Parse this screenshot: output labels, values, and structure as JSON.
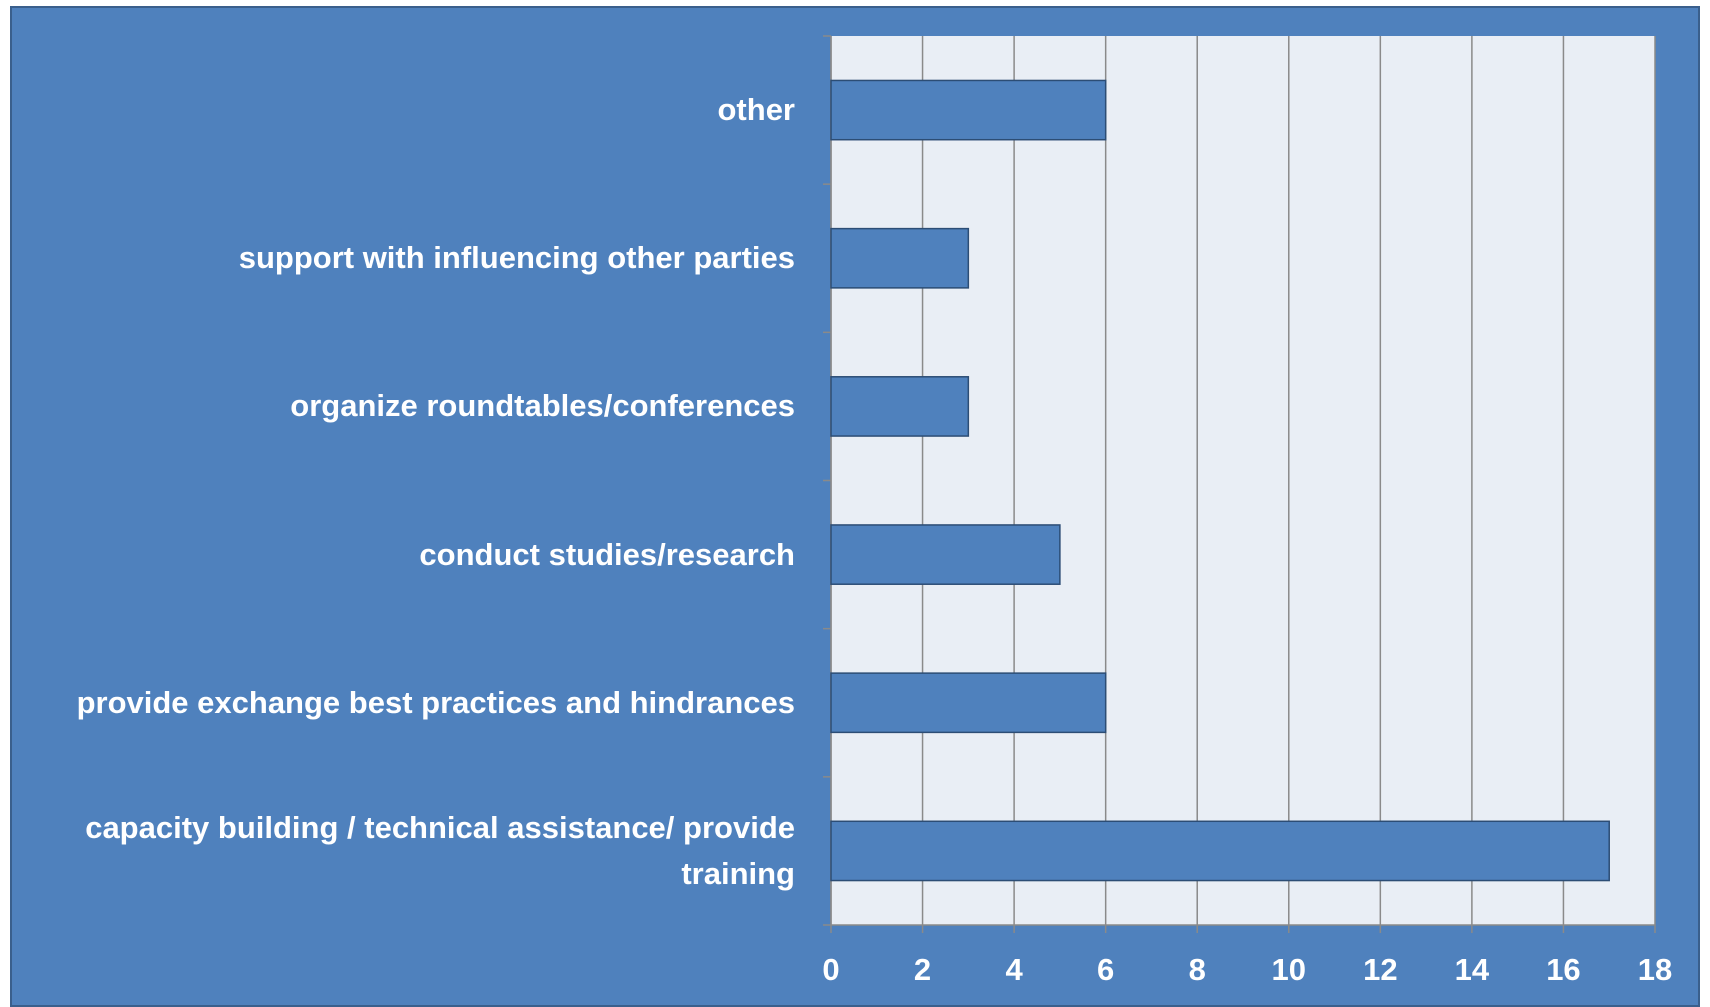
{
  "chart_data": {
    "type": "bar",
    "orientation": "horizontal",
    "categories": [
      "other",
      "support with influencing other parties",
      "organize roundtables/conferences",
      "conduct studies/research",
      "provide exchange best practices and hindrances",
      "capacity building / technical assistance/ provide training"
    ],
    "values": [
      6,
      3,
      3,
      5,
      6,
      17
    ],
    "color": "#4f81bd",
    "xlim": [
      0,
      18
    ],
    "xticks": [
      0,
      2,
      4,
      6,
      8,
      10,
      12,
      14,
      16,
      18
    ],
    "grid": true
  }
}
